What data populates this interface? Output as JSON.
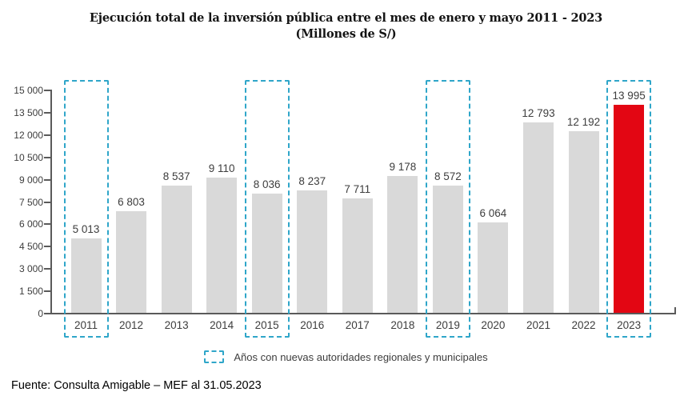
{
  "title": {
    "line1": "Ejecución total de la inversión pública entre el mes de enero y mayo 2011 - 2023",
    "line2": "(Millones de S/)"
  },
  "chart_data": {
    "type": "bar",
    "title": "Ejecución total de la inversión pública entre el mes de enero y mayo 2011 - 2023 (Millones de S/)",
    "categories": [
      "2011",
      "2012",
      "2013",
      "2014",
      "2015",
      "2016",
      "2017",
      "2018",
      "2019",
      "2020",
      "2021",
      "2022",
      "2023"
    ],
    "values": [
      5013,
      6803,
      8537,
      9110,
      8036,
      8237,
      7711,
      9178,
      8572,
      6064,
      12793,
      12192,
      13995
    ],
    "value_labels": [
      "5 013",
      "6 803",
      "8 537",
      "9 110",
      "8 036",
      "8 237",
      "7 711",
      "9 178",
      "8 572",
      "6 064",
      "12 793",
      "12 192",
      "13 995"
    ],
    "highlighted_category": "2023",
    "boxed_categories": [
      "2011",
      "2015",
      "2019",
      "2023"
    ],
    "y_axis": {
      "min": 0,
      "max": 15000,
      "tick_step": 1500,
      "tick_labels": [
        "0",
        "1 500",
        "3 000",
        "4 500",
        "6 000",
        "7 500",
        "9 000",
        "10 500",
        "12 000",
        "13 500",
        "15 000"
      ]
    },
    "grid": false,
    "legend_position": "bottom",
    "colors": {
      "bar": "#D9D9D9",
      "highlight": "#E30613",
      "dashed_box": "#2FA6C9",
      "axis": "#5a5a5a",
      "text": "#3d3d3d"
    }
  },
  "legend": {
    "label": "Años con nuevas autoridades regionales y municipales"
  },
  "source": "Fuente: Consulta Amigable – MEF al 31.05.2023"
}
